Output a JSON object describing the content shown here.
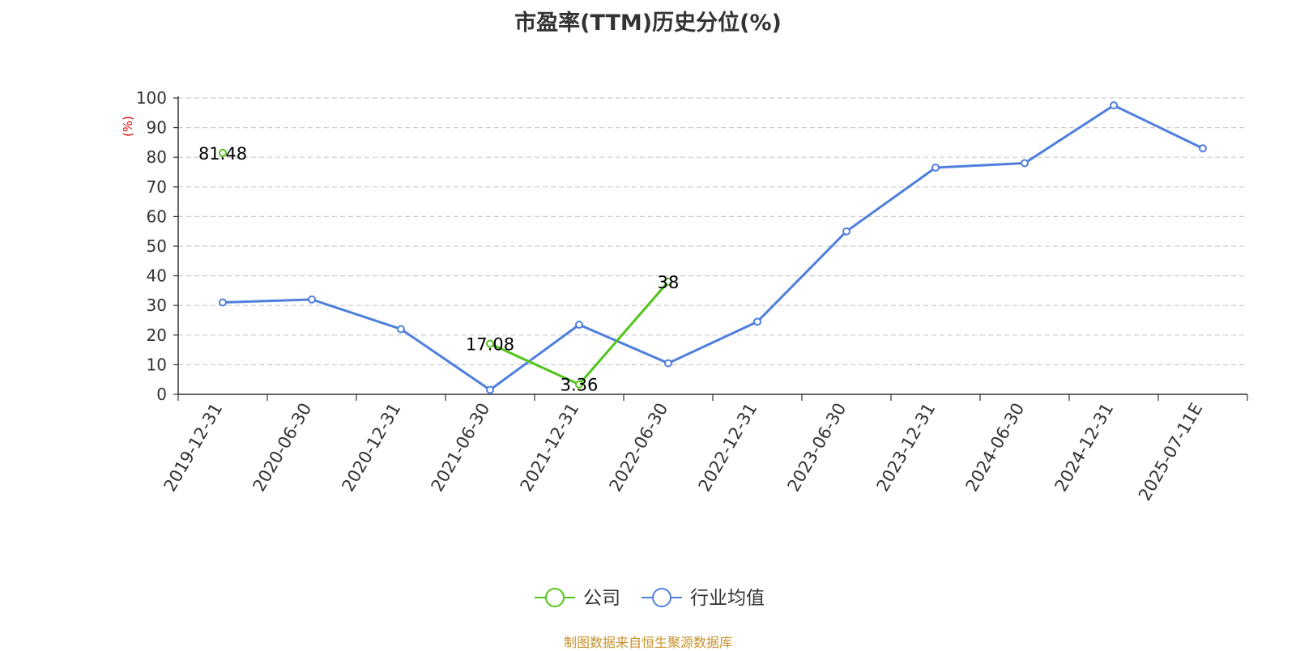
{
  "chart_data": {
    "type": "line",
    "title": "市盈率(TTM)历史分位(%)",
    "ylabel": "(%)",
    "xlabel": "",
    "ylim": [
      0,
      100
    ],
    "yticks": [
      0,
      10,
      20,
      30,
      40,
      50,
      60,
      70,
      80,
      90,
      100
    ],
    "grid": true,
    "legend_position": "bottom-center",
    "categories": [
      "2019-12-31",
      "2020-06-30",
      "2020-12-31",
      "2021-06-30",
      "2021-12-31",
      "2022-06-30",
      "2022-12-31",
      "2023-06-30",
      "2023-12-31",
      "2024-06-30",
      "2024-12-31",
      "2025-07-11E"
    ],
    "series": [
      {
        "name": "公司",
        "color": "#52c41a",
        "values": [
          81.48,
          null,
          null,
          17.08,
          3.36,
          38,
          null,
          null,
          null,
          null,
          null,
          null
        ],
        "labels": [
          "81.48",
          "",
          "",
          "17.08",
          "3.36",
          "38",
          "",
          "",
          "",
          "",
          "",
          ""
        ]
      },
      {
        "name": "行业均值",
        "color": "#4e7fdc",
        "values": [
          31,
          32,
          22,
          1.5,
          23.5,
          10.5,
          24.5,
          55,
          76.5,
          78,
          97.5,
          83
        ],
        "labels": []
      }
    ]
  },
  "footer": "制图数据来自恒生聚源数据库"
}
